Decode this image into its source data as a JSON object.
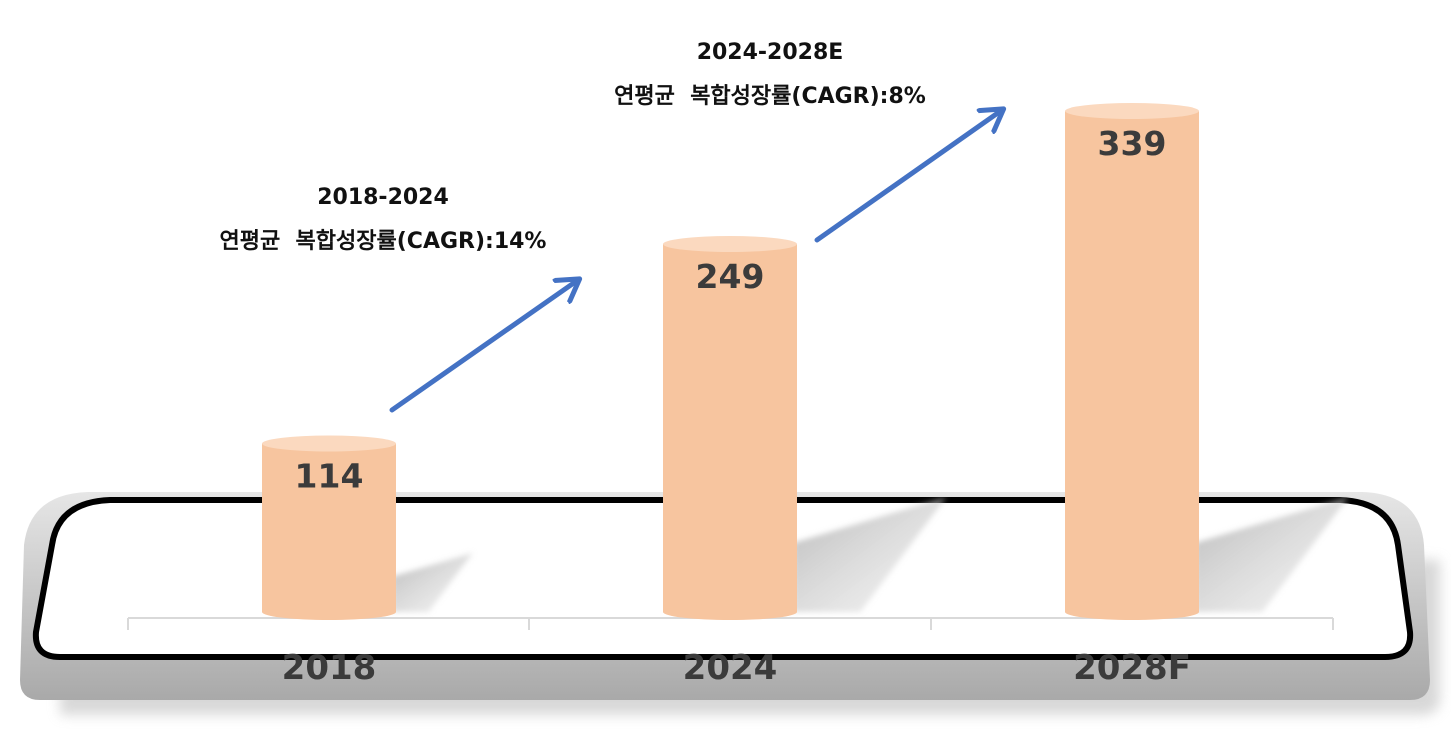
{
  "chart_data": {
    "type": "bar",
    "categories": [
      "2018",
      "2024",
      "2028F"
    ],
    "values": [
      114,
      249,
      339
    ],
    "title": "",
    "xlabel": "",
    "ylabel": "",
    "ylim": [
      0,
      350
    ],
    "grid": false,
    "legend": "none",
    "annotations": [
      {
        "period": "2018-2024",
        "text": "연평균  복합성장률(CAGR):14%"
      },
      {
        "period": "2024-2028E",
        "text": "연평균  복합성장률(CAGR):8%"
      }
    ]
  },
  "colors": {
    "bar": "#f7c59f",
    "bar_top": "#fbd9bf",
    "arrow": "#4472c4",
    "value_text": "#3b3b3b",
    "category_text": "#3b3b3b",
    "platform_border": "#000000",
    "platform_shadow": "#c4c4c4"
  }
}
